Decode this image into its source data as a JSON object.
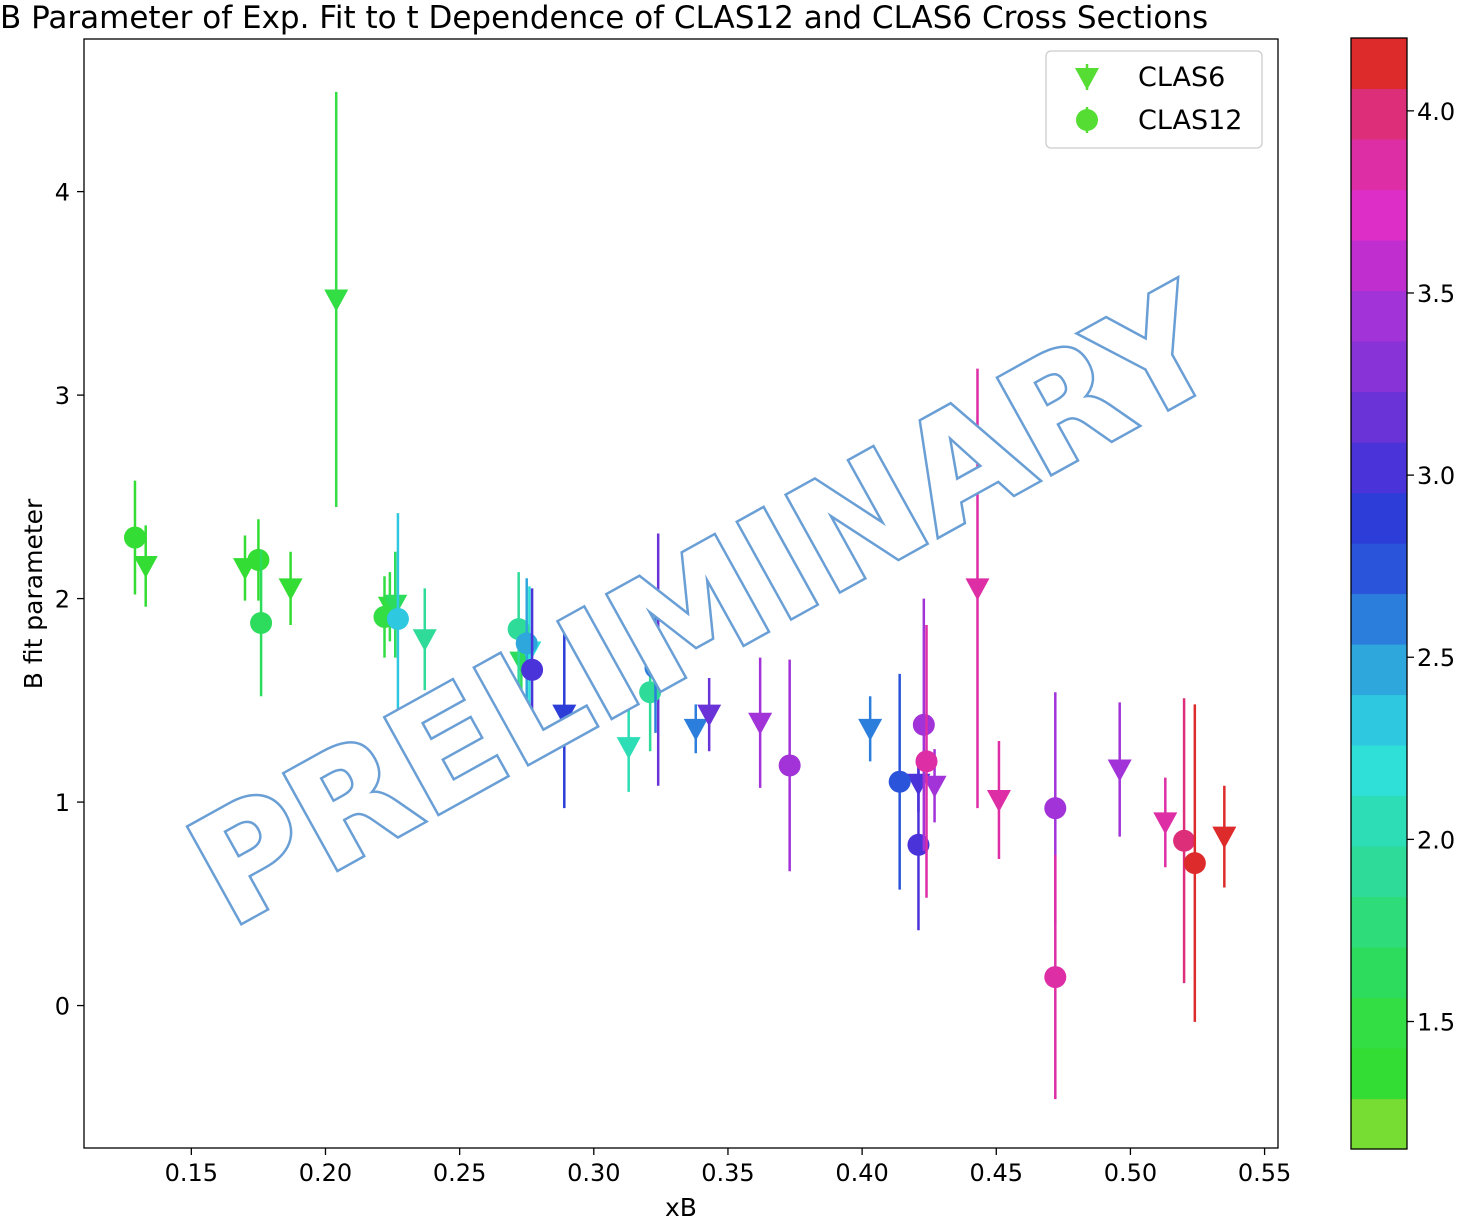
{
  "chart_data": {
    "type": "scatter",
    "title": "B Parameter of Exp. Fit to t Dependence of CLAS12 and CLAS6 Cross Sections",
    "xlabel": "xB",
    "ylabel": "B fit parameter",
    "xlim": [
      0.11,
      0.555
    ],
    "ylim": [
      -0.7,
      4.75
    ],
    "x_ticks": [
      "0.15",
      "0.20",
      "0.25",
      "0.30",
      "0.35",
      "0.40",
      "0.45",
      "0.50",
      "0.55"
    ],
    "x_tick_values": [
      0.15,
      0.2,
      0.25,
      0.3,
      0.35,
      0.4,
      0.45,
      0.5,
      0.55
    ],
    "y_ticks": [
      "0",
      "1",
      "2",
      "3",
      "4"
    ],
    "y_tick_values": [
      0,
      1,
      2,
      3,
      4
    ],
    "grid": false,
    "legend": {
      "position": "top-right",
      "entries": [
        "CLAS6",
        "CLAS12"
      ],
      "marker_color": "#55dd33"
    },
    "colorbar": {
      "range": [
        1.15,
        4.2
      ],
      "ticks": [
        "1.5",
        "2.0",
        "2.5",
        "3.0",
        "3.5",
        "4.0"
      ],
      "tick_values": [
        1.5,
        2.0,
        2.5,
        3.0,
        3.5,
        4.0
      ],
      "colors": [
        "#77dd33",
        "#33dd33",
        "#33dd44",
        "#2ddc5c",
        "#2fdc7a",
        "#2edb98",
        "#2cddb5",
        "#2ee0d8",
        "#2ec8e0",
        "#2ea8dc",
        "#2c7edc",
        "#2a55da",
        "#2c3dd8",
        "#4a33d8",
        "#6a33d8",
        "#8833d8",
        "#a233d8",
        "#c02ed0",
        "#dd2ec8",
        "#dd2ea6",
        "#dd2e7a",
        "#dd2a2a"
      ]
    },
    "series": [
      {
        "name": "CLAS6",
        "marker": "triangle-down",
        "points": [
          {
            "x": 0.133,
            "y": 2.16,
            "err": 0.2,
            "c": 1.3
          },
          {
            "x": 0.17,
            "y": 2.15,
            "err": 0.16,
            "c": 1.4
          },
          {
            "x": 0.187,
            "y": 2.05,
            "err": 0.18,
            "c": 1.4
          },
          {
            "x": 0.204,
            "y": 3.47,
            "err": 1.02,
            "c": 1.45
          },
          {
            "x": 0.224,
            "y": 1.96,
            "err": 0.17,
            "c": 1.55
          },
          {
            "x": 0.226,
            "y": 1.97,
            "err": 0.26,
            "c": 1.65
          },
          {
            "x": 0.237,
            "y": 1.8,
            "err": 0.25,
            "c": 1.95
          },
          {
            "x": 0.273,
            "y": 1.69,
            "err": 0.2,
            "c": 1.7
          },
          {
            "x": 0.276,
            "y": 1.74,
            "err": 0.32,
            "c": 2.2
          },
          {
            "x": 0.289,
            "y": 1.43,
            "err": 0.46,
            "c": 2.95
          },
          {
            "x": 0.313,
            "y": 1.27,
            "err": 0.22,
            "c": 2.1
          },
          {
            "x": 0.324,
            "y": 1.7,
            "err": 0.62,
            "c": 3.1
          },
          {
            "x": 0.338,
            "y": 1.36,
            "err": 0.12,
            "c": 2.55
          },
          {
            "x": 0.343,
            "y": 1.43,
            "err": 0.18,
            "c": 3.1
          },
          {
            "x": 0.362,
            "y": 1.39,
            "err": 0.32,
            "c": 3.4
          },
          {
            "x": 0.403,
            "y": 1.36,
            "err": 0.16,
            "c": 2.6
          },
          {
            "x": 0.421,
            "y": 1.09,
            "err": 0.14,
            "c": 3.05
          },
          {
            "x": 0.427,
            "y": 1.08,
            "err": 0.18,
            "c": 3.4
          },
          {
            "x": 0.443,
            "y": 2.05,
            "err": 1.08,
            "c": 3.9
          },
          {
            "x": 0.451,
            "y": 1.01,
            "err": 0.29,
            "c": 3.9
          },
          {
            "x": 0.496,
            "y": 1.16,
            "err": 0.33,
            "c": 3.5
          },
          {
            "x": 0.513,
            "y": 0.9,
            "err": 0.22,
            "c": 3.9
          },
          {
            "x": 0.535,
            "y": 0.83,
            "err": 0.25,
            "c": 4.2
          }
        ]
      },
      {
        "name": "CLAS12",
        "marker": "circle",
        "points": [
          {
            "x": 0.129,
            "y": 2.3,
            "err": 0.28,
            "c": 1.3
          },
          {
            "x": 0.175,
            "y": 2.19,
            "err": 0.2,
            "c": 1.4
          },
          {
            "x": 0.176,
            "y": 1.88,
            "err": 0.36,
            "c": 1.6
          },
          {
            "x": 0.222,
            "y": 1.91,
            "err": 0.2,
            "c": 1.5
          },
          {
            "x": 0.227,
            "y": 1.9,
            "err": 0.52,
            "c": 2.3
          },
          {
            "x": 0.272,
            "y": 1.85,
            "err": 0.28,
            "c": 1.9
          },
          {
            "x": 0.275,
            "y": 1.78,
            "err": 0.32,
            "c": 2.5
          },
          {
            "x": 0.277,
            "y": 1.65,
            "err": 0.4,
            "c": 3.0
          },
          {
            "x": 0.321,
            "y": 1.54,
            "err": 0.29,
            "c": 1.85
          },
          {
            "x": 0.323,
            "y": 1.66,
            "err": 0.32,
            "c": 2.6
          },
          {
            "x": 0.373,
            "y": 1.18,
            "err": 0.52,
            "c": 3.5
          },
          {
            "x": 0.414,
            "y": 1.1,
            "err": 0.53,
            "c": 2.7
          },
          {
            "x": 0.421,
            "y": 0.79,
            "err": 0.42,
            "c": 3.0
          },
          {
            "x": 0.423,
            "y": 1.38,
            "err": 0.62,
            "c": 3.5
          },
          {
            "x": 0.424,
            "y": 1.2,
            "err": 0.67,
            "c": 3.9
          },
          {
            "x": 0.472,
            "y": 0.97,
            "err": 0.57,
            "c": 3.5
          },
          {
            "x": 0.472,
            "y": 0.14,
            "err": 0.6,
            "c": 3.85
          },
          {
            "x": 0.52,
            "y": 0.81,
            "err": 0.7,
            "c": 4.0
          },
          {
            "x": 0.524,
            "y": 0.7,
            "err": 0.78,
            "c": 4.2
          }
        ]
      }
    ]
  },
  "watermark": {
    "text": "PRELIMINARY",
    "angle": -29,
    "outline_color": "#6a9fd6"
  }
}
